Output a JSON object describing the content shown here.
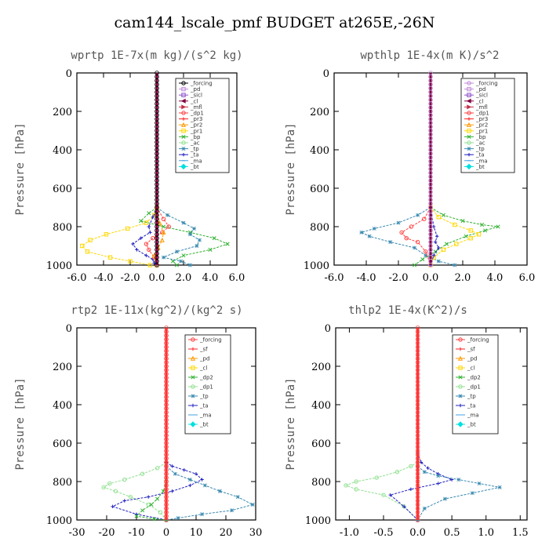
{
  "title": "cam144_lscale_pmf  BUDGET at265E,-26N",
  "chart_data": [
    {
      "type": "line",
      "title": "wprtp   1E-7x(m kg)/(s^2 kg)",
      "ylabel": "Pressure [hPa]",
      "xlim": [
        -6,
        6
      ],
      "ylim": [
        1000,
        0
      ],
      "xticks": [
        "-6.0",
        "-4.0",
        "-2.0",
        "0.0",
        "2.0",
        "4.0",
        "6.0"
      ],
      "xtick_values": [
        -6,
        -4,
        -2,
        0,
        2,
        4,
        6
      ],
      "yticks": [
        "0",
        "200",
        "400",
        "600",
        "800",
        "1000"
      ],
      "ytick_values": [
        0,
        200,
        400,
        600,
        800,
        1000
      ],
      "legend": [
        {
          "name": "_forcing",
          "color": "#000000",
          "marker": "o"
        },
        {
          "name": "_pd",
          "color": "#c08ad8",
          "marker": "s"
        },
        {
          "name": "_sicl",
          "color": "#8a4fc8",
          "marker": "s"
        },
        {
          "name": "_cl",
          "color": "#800040",
          "marker": "<"
        },
        {
          "name": "_mfl",
          "color": "#c0304a",
          "marker": ">"
        },
        {
          "name": "_dp1",
          "color": "#ff4040",
          "marker": "o"
        },
        {
          "name": "_pr3",
          "color": "#ff2020",
          "marker": "+"
        },
        {
          "name": "_pr2",
          "color": "#ff9900",
          "marker": "^"
        },
        {
          "name": "_pr1",
          "color": "#ffd700",
          "marker": "s"
        },
        {
          "name": "_bp",
          "color": "#30b030",
          "marker": "x"
        },
        {
          "name": "_ac",
          "color": "#90e090",
          "marker": "o"
        },
        {
          "name": "_tp",
          "color": "#3a8ab0",
          "marker": "*"
        },
        {
          "name": "_ta",
          "color": "#2020c0",
          "marker": "+"
        },
        {
          "name": "_ma",
          "color": "#40a0e0",
          "marker": "-"
        },
        {
          "name": "_bt",
          "color": "#00e0e0",
          "marker": "d"
        }
      ],
      "series": [
        {
          "name": "_pr1",
          "color": "#ffd700",
          "x": [
            0,
            -0.2,
            -0.8,
            -2.2,
            -3.8,
            -5.0,
            -5.6,
            -5.2,
            -3.5,
            -2.0,
            -0.5
          ],
          "y": [
            700,
            740,
            780,
            810,
            840,
            870,
            900,
            930,
            960,
            980,
            1000
          ]
        },
        {
          "name": "_bp",
          "color": "#30b030",
          "x": [
            0,
            -0.6,
            -1.2,
            0.5,
            2.5,
            4.3,
            5.3,
            4.0,
            2.0,
            1.2,
            1.5
          ],
          "y": [
            700,
            730,
            770,
            800,
            830,
            860,
            890,
            920,
            950,
            980,
            1000
          ]
        },
        {
          "name": "_tp",
          "color": "#3a8ab0",
          "x": [
            0,
            0.8,
            2.0,
            2.8,
            2.5,
            3.2,
            3.0,
            1.5,
            0.5,
            1.8,
            2.5
          ],
          "y": [
            700,
            740,
            780,
            810,
            840,
            870,
            900,
            930,
            960,
            980,
            1000
          ]
        },
        {
          "name": "_ta",
          "color": "#2020c0",
          "x": [
            0,
            -0.3,
            -0.6,
            -0.5,
            -1.2,
            -1.8,
            -1.5,
            -0.8,
            -0.3,
            -0.2,
            0
          ],
          "y": [
            700,
            750,
            800,
            830,
            860,
            890,
            920,
            950,
            970,
            990,
            1000
          ]
        },
        {
          "name": "_dp1",
          "color": "#ff4040",
          "x": [
            0,
            0.5,
            0.9,
            0.4,
            -0.3,
            -0.8,
            -0.6,
            -0.2,
            0
          ],
          "y": [
            700,
            760,
            800,
            830,
            860,
            890,
            920,
            960,
            1000
          ]
        },
        {
          "name": "_pr2",
          "color": "#ff9900",
          "x": [
            0,
            0.2,
            0.5,
            0.4,
            0.1,
            -0.2,
            0
          ],
          "y": [
            700,
            780,
            830,
            870,
            910,
            950,
            1000
          ]
        }
      ]
    },
    {
      "type": "line",
      "title": "wpthlp   1E-4x(m K)/s^2",
      "ylabel": "Pressure [hPa]",
      "xlim": [
        -6,
        6
      ],
      "ylim": [
        1000,
        0
      ],
      "xticks": [
        "-6.0",
        "-4.0",
        "-2.0",
        "0.0",
        "2.0",
        "4.0",
        "6.0"
      ],
      "xtick_values": [
        -6,
        -4,
        -2,
        0,
        2,
        4,
        6
      ],
      "yticks": [
        "0",
        "200",
        "400",
        "600",
        "800",
        "1000"
      ],
      "ytick_values": [
        0,
        200,
        400,
        600,
        800,
        1000
      ],
      "legend": [
        {
          "name": "_forcing",
          "color": "#c08ad8",
          "marker": "o"
        },
        {
          "name": "_pd",
          "color": "#c08ad8",
          "marker": "s"
        },
        {
          "name": "_sicl",
          "color": "#8a4fc8",
          "marker": "s"
        },
        {
          "name": "_cl",
          "color": "#800040",
          "marker": "<"
        },
        {
          "name": "_mfl",
          "color": "#c0304a",
          "marker": ">"
        },
        {
          "name": "_dp1",
          "color": "#ff4040",
          "marker": "o"
        },
        {
          "name": "_pr3",
          "color": "#ff2020",
          "marker": "+"
        },
        {
          "name": "_pr2",
          "color": "#ff9900",
          "marker": "^"
        },
        {
          "name": "_pr1",
          "color": "#ffd700",
          "marker": "s"
        },
        {
          "name": "_bp",
          "color": "#30b030",
          "marker": "x"
        },
        {
          "name": "_ac",
          "color": "#90e090",
          "marker": "o"
        },
        {
          "name": "_tp",
          "color": "#3a8ab0",
          "marker": "*"
        },
        {
          "name": "_ta",
          "color": "#2020c0",
          "marker": "+"
        },
        {
          "name": "_ma",
          "color": "#40a0e0",
          "marker": "-"
        },
        {
          "name": "_bt",
          "color": "#00e0e0",
          "marker": "d"
        }
      ],
      "series": [
        {
          "name": "_tp",
          "color": "#3a8ab0",
          "x": [
            0,
            -0.8,
            -2.0,
            -3.5,
            -4.3,
            -3.8,
            -2.5,
            -1.0,
            -0.3,
            0.5,
            1.5
          ],
          "y": [
            700,
            740,
            780,
            810,
            830,
            850,
            880,
            910,
            950,
            980,
            1000
          ]
        },
        {
          "name": "_bp",
          "color": "#30b030",
          "x": [
            0,
            0.8,
            2.0,
            3.2,
            4.2,
            3.4,
            2.2,
            1.0,
            0.3,
            -0.5,
            -1.0
          ],
          "y": [
            700,
            740,
            770,
            790,
            800,
            820,
            850,
            890,
            930,
            970,
            1000
          ]
        },
        {
          "name": "_pr1",
          "color": "#ffd700",
          "x": [
            0,
            0.5,
            1.5,
            2.5,
            3.0,
            2.5,
            1.6,
            0.8,
            0.2,
            0
          ],
          "y": [
            700,
            750,
            790,
            820,
            840,
            860,
            890,
            920,
            960,
            1000
          ]
        },
        {
          "name": "_dp1",
          "color": "#ff4040",
          "x": [
            0,
            -0.4,
            -1.2,
            -1.8,
            -1.5,
            -0.8,
            -0.3,
            0
          ],
          "y": [
            700,
            760,
            800,
            830,
            860,
            880,
            930,
            1000
          ]
        },
        {
          "name": "_ta",
          "color": "#2020c0",
          "x": [
            0,
            0.2,
            0.4,
            0.3,
            0.5,
            0.2,
            0
          ],
          "y": [
            700,
            800,
            850,
            880,
            910,
            950,
            1000
          ]
        }
      ]
    },
    {
      "type": "line",
      "title": "rtp2   1E-11x(kg^2)/(kg^2 s)",
      "ylabel": "Pressure [hPa]",
      "xlim": [
        -30,
        30
      ],
      "ylim": [
        1000,
        0
      ],
      "xticks": [
        "-30",
        "-20",
        "-10",
        "0",
        "10",
        "20",
        "30"
      ],
      "xtick_values": [
        -30,
        -20,
        -10,
        0,
        10,
        20,
        30
      ],
      "yticks": [
        "0",
        "200",
        "400",
        "600",
        "800",
        "1000"
      ],
      "ytick_values": [
        0,
        200,
        400,
        600,
        800,
        1000
      ],
      "legend": [
        {
          "name": "_forcing",
          "color": "#ff4040",
          "marker": "o"
        },
        {
          "name": "_sf",
          "color": "#ff2020",
          "marker": "+"
        },
        {
          "name": "_pd",
          "color": "#ff9900",
          "marker": "^"
        },
        {
          "name": "_cl",
          "color": "#ffd700",
          "marker": "s"
        },
        {
          "name": "_dp2",
          "color": "#30b030",
          "marker": "x"
        },
        {
          "name": "_dp1",
          "color": "#90e090",
          "marker": "o"
        },
        {
          "name": "_tp",
          "color": "#3a8ab0",
          "marker": "*"
        },
        {
          "name": "_ta",
          "color": "#2020c0",
          "marker": "+"
        },
        {
          "name": "_ma",
          "color": "#40a0e0",
          "marker": "-"
        },
        {
          "name": "_bt",
          "color": "#00e0e0",
          "marker": "d"
        }
      ],
      "series": [
        {
          "name": "_dp1",
          "color": "#90e090",
          "x": [
            0,
            -3,
            -8,
            -14,
            -19,
            -21,
            -17,
            -12,
            -6,
            -2,
            0
          ],
          "y": [
            700,
            730,
            760,
            790,
            810,
            830,
            850,
            880,
            920,
            960,
            1000
          ]
        },
        {
          "name": "_ta",
          "color": "#2020c0",
          "x": [
            0,
            2,
            6,
            10,
            12,
            8,
            2,
            -6,
            -14,
            -18,
            -10,
            0
          ],
          "y": [
            700,
            720,
            740,
            760,
            790,
            820,
            850,
            880,
            900,
            930,
            970,
            1000
          ]
        },
        {
          "name": "_tp",
          "color": "#3a8ab0",
          "x": [
            0,
            3,
            8,
            13,
            18,
            24,
            29,
            22,
            12,
            4,
            0
          ],
          "y": [
            720,
            760,
            790,
            820,
            850,
            880,
            920,
            950,
            970,
            990,
            1000
          ]
        },
        {
          "name": "_dp2",
          "color": "#30b030",
          "x": [
            0,
            -1,
            -3,
            -5,
            -8,
            -10,
            -4,
            0
          ],
          "y": [
            800,
            850,
            890,
            920,
            950,
            980,
            995,
            1000
          ]
        }
      ]
    },
    {
      "type": "line",
      "title": "thlp2   1E-4x(K^2)/s",
      "ylabel": "Pressure [hPa]",
      "xlim": [
        -1.2,
        1.6
      ],
      "ylim": [
        1000,
        0
      ],
      "xticks": [
        "-1.0",
        "-0.5",
        "0.0",
        "0.5",
        "1.0",
        "1.5"
      ],
      "xtick_values": [
        -1.0,
        -0.5,
        0.0,
        0.5,
        1.0,
        1.5
      ],
      "yticks": [
        "0",
        "200",
        "400",
        "600",
        "800",
        "1000"
      ],
      "ytick_values": [
        0,
        200,
        400,
        600,
        800,
        1000
      ],
      "legend": [
        {
          "name": "_forcing",
          "color": "#ff4040",
          "marker": "o"
        },
        {
          "name": "_sf",
          "color": "#ff2020",
          "marker": "+"
        },
        {
          "name": "_pd",
          "color": "#ff9900",
          "marker": "^"
        },
        {
          "name": "_cl",
          "color": "#ffd700",
          "marker": "s"
        },
        {
          "name": "_dp2",
          "color": "#30b030",
          "marker": "x"
        },
        {
          "name": "_dp1",
          "color": "#90e090",
          "marker": "o"
        },
        {
          "name": "_tp",
          "color": "#3a8ab0",
          "marker": "*"
        },
        {
          "name": "_ta",
          "color": "#2020c0",
          "marker": "+"
        },
        {
          "name": "_ma",
          "color": "#40a0e0",
          "marker": "-"
        },
        {
          "name": "_bt",
          "color": "#00e0e0",
          "marker": "d"
        }
      ],
      "series": [
        {
          "name": "_dp1",
          "color": "#90e090",
          "x": [
            0,
            -0.1,
            -0.3,
            -0.6,
            -0.9,
            -1.05,
            -0.9,
            -0.5,
            -0.2,
            0
          ],
          "y": [
            700,
            720,
            750,
            780,
            800,
            820,
            840,
            870,
            930,
            1000
          ]
        },
        {
          "name": "_ta",
          "color": "#2020c0",
          "x": [
            0,
            0.05,
            0.15,
            0.3,
            0.5,
            0.3,
            -0.1,
            -0.4,
            -0.2,
            0
          ],
          "y": [
            650,
            700,
            730,
            760,
            790,
            810,
            840,
            870,
            930,
            1000
          ]
        },
        {
          "name": "_tp",
          "color": "#3a8ab0",
          "x": [
            0,
            0.1,
            0.3,
            0.6,
            0.9,
            1.2,
            0.8,
            0.4,
            0.1,
            0
          ],
          "y": [
            720,
            750,
            770,
            790,
            810,
            830,
            860,
            890,
            940,
            1000
          ]
        }
      ]
    }
  ]
}
